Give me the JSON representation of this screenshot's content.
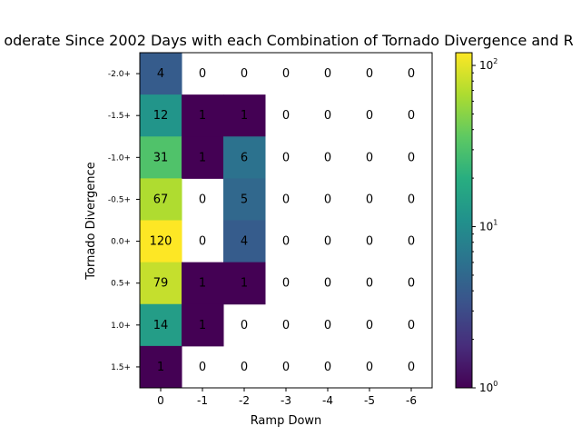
{
  "chart_data": {
    "type": "heatmap",
    "title": "oderate Since 2002 Days with each Combination of Tornado Divergence and R",
    "xlabel": "Ramp Down",
    "ylabel": "Tornado Divergence",
    "x_categories": [
      "0",
      "-1",
      "-2",
      "-3",
      "-4",
      "-5",
      "-6"
    ],
    "y_categories": [
      "-2.0+",
      "-1.5+",
      "-1.0+",
      "-0.5+",
      "0.0+",
      "0.5+",
      "1.0+",
      "1.5+"
    ],
    "values": [
      [
        4,
        0,
        0,
        0,
        0,
        0,
        0
      ],
      [
        12,
        1,
        1,
        0,
        0,
        0,
        0
      ],
      [
        31,
        1,
        6,
        0,
        0,
        0,
        0
      ],
      [
        67,
        0,
        5,
        0,
        0,
        0,
        0
      ],
      [
        120,
        0,
        4,
        0,
        0,
        0,
        0
      ],
      [
        79,
        1,
        1,
        0,
        0,
        0,
        0
      ],
      [
        14,
        1,
        0,
        0,
        0,
        0,
        0
      ],
      [
        1,
        0,
        0,
        0,
        0,
        0,
        0
      ]
    ],
    "colorbar": {
      "scale": "log",
      "range": [
        1,
        120
      ],
      "tick_values": [
        1,
        10,
        100
      ],
      "tick_labels": [
        "10",
        "10",
        "10"
      ],
      "tick_exponents": [
        "0",
        "1",
        "2"
      ],
      "colormap": "viridis"
    },
    "zero_cells": "blank",
    "grid": false
  }
}
